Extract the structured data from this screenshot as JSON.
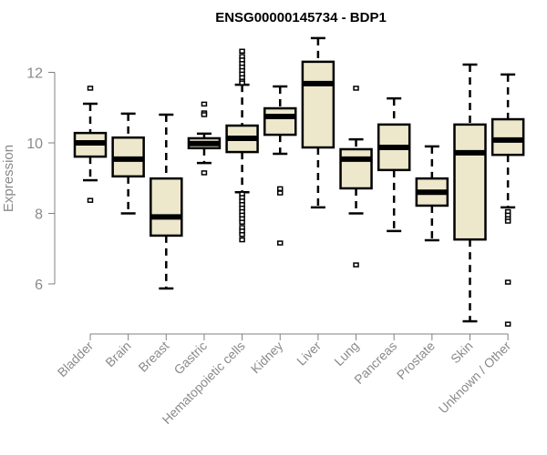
{
  "chart_data": {
    "type": "boxplot",
    "title": "ENSG00000145734 - BDP1",
    "xlabel": "",
    "ylabel": "Expression",
    "ylim": [
      4.5,
      13.2
    ],
    "yticks": [
      6,
      8,
      10,
      12
    ],
    "grid": false,
    "colors": {
      "box_fill": "#ede8cc",
      "stroke": "#000000",
      "axis": "#808080",
      "text": "#8a8a8a"
    },
    "categories": [
      "Bladder",
      "Brain",
      "Breast",
      "Gastric",
      "Hematopoietic cells",
      "Kidney",
      "Liver",
      "Lung",
      "Pancreas",
      "Prostate",
      "Skin",
      "Unknown / Other"
    ],
    "series": [
      {
        "name": "Bladder",
        "whisker_low": 8.94,
        "q1": 9.61,
        "median": 10.0,
        "q3": 10.28,
        "whisker_high": 11.11,
        "outliers": [
          11.55,
          8.37
        ]
      },
      {
        "name": "Brain",
        "whisker_low": 8.0,
        "q1": 9.05,
        "median": 9.54,
        "q3": 10.15,
        "whisker_high": 10.83,
        "outliers": []
      },
      {
        "name": "Breast",
        "whisker_low": 5.87,
        "q1": 7.37,
        "median": 7.9,
        "q3": 8.99,
        "whisker_high": 10.8,
        "outliers": []
      },
      {
        "name": "Gastric",
        "whisker_low": 9.43,
        "q1": 9.85,
        "median": 9.98,
        "q3": 10.13,
        "whisker_high": 10.26,
        "outliers": [
          11.1,
          10.85,
          10.8,
          9.15
        ]
      },
      {
        "name": "Hematopoietic cells",
        "whisker_low": 8.6,
        "q1": 9.74,
        "median": 10.13,
        "q3": 10.49,
        "whisker_high": 11.65,
        "outliers": [
          12.6,
          12.45,
          12.35,
          12.25,
          12.15,
          12.05,
          11.95,
          11.85,
          11.75,
          11.7,
          8.55,
          8.45,
          8.35,
          8.25,
          8.15,
          8.05,
          7.95,
          7.85,
          7.75,
          7.6,
          7.5,
          7.4,
          7.25
        ]
      },
      {
        "name": "Kidney",
        "whisker_low": 9.69,
        "q1": 10.23,
        "median": 10.75,
        "q3": 10.98,
        "whisker_high": 11.6,
        "outliers": [
          8.7,
          8.58,
          7.16
        ]
      },
      {
        "name": "Liver",
        "whisker_low": 8.17,
        "q1": 9.87,
        "median": 11.68,
        "q3": 12.3,
        "whisker_high": 12.97,
        "outliers": []
      },
      {
        "name": "Lung",
        "whisker_low": 8.0,
        "q1": 8.71,
        "median": 9.54,
        "q3": 9.82,
        "whisker_high": 10.1,
        "outliers": [
          11.55,
          6.54
        ]
      },
      {
        "name": "Pancreas",
        "whisker_low": 7.5,
        "q1": 9.23,
        "median": 9.87,
        "q3": 10.52,
        "whisker_high": 11.26,
        "outliers": []
      },
      {
        "name": "Prostate",
        "whisker_low": 7.24,
        "q1": 8.22,
        "median": 8.6,
        "q3": 8.99,
        "whisker_high": 9.9,
        "outliers": []
      },
      {
        "name": "Skin",
        "whisker_low": 4.94,
        "q1": 7.26,
        "median": 9.72,
        "q3": 10.52,
        "whisker_high": 12.22,
        "outliers": []
      },
      {
        "name": "Unknown / Other",
        "whisker_low": 8.17,
        "q1": 9.66,
        "median": 10.08,
        "q3": 10.67,
        "whisker_high": 11.94,
        "outliers": [
          8.05,
          7.95,
          7.85,
          7.78,
          6.05,
          4.86
        ]
      }
    ]
  }
}
